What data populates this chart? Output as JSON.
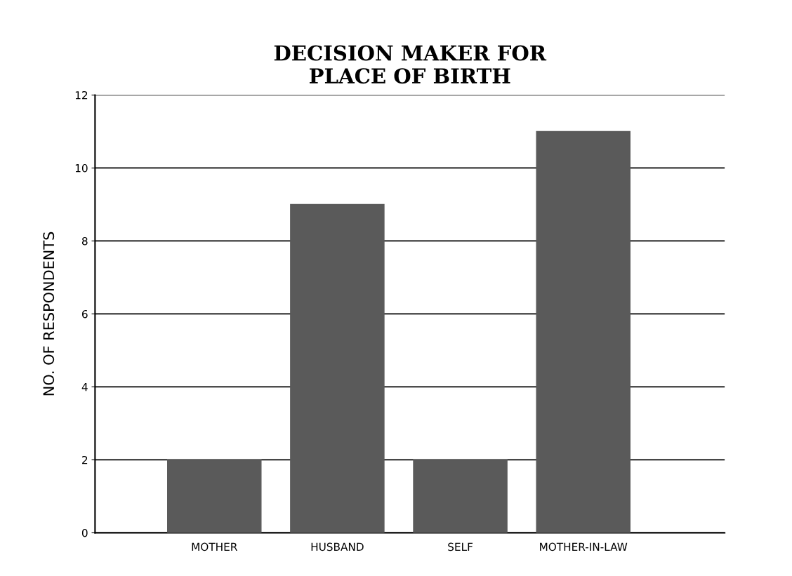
{
  "chart_data": {
    "type": "bar",
    "title": "DECISION MAKER FOR\nPLACE OF BIRTH",
    "ylabel": "NO. OF RESPONDENTS",
    "categories": [
      "MOTHER",
      "HUSBAND",
      "SELF",
      "MOTHER-IN-LAW"
    ],
    "values": [
      2,
      9,
      2,
      11
    ],
    "color": "#5a5a5a",
    "ylim": [
      0,
      12
    ],
    "yticks": [
      0,
      2,
      4,
      6,
      8,
      10,
      12
    ],
    "grid": "y",
    "legend": false
  }
}
